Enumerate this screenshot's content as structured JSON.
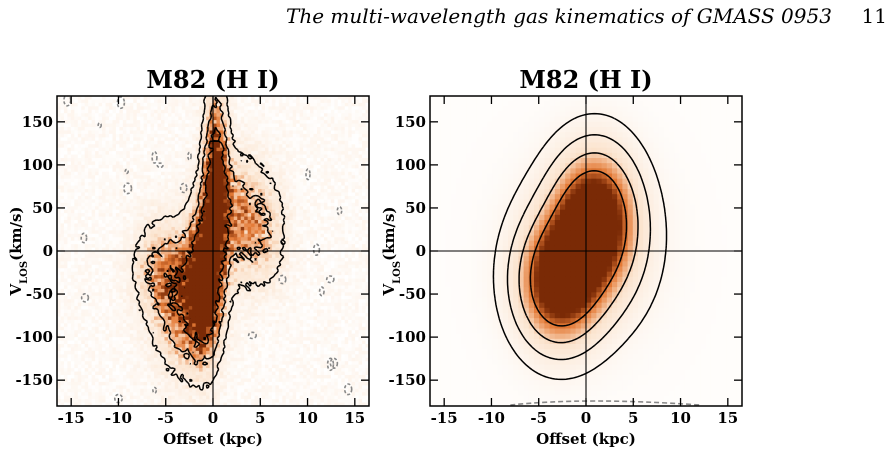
{
  "header": {
    "running_title": "The multi-wavelength gas kinematics of GMASS 0953",
    "page_number": "11"
  },
  "colors": {
    "light": "#fbe3cd",
    "mid": "#e47a36",
    "dark": "#7a2a06",
    "contour": "#000000",
    "negative_contour": "#888888"
  },
  "chart_data": [
    {
      "type": "heatmap",
      "title": "M82 (H I)",
      "xlabel": "Offset (kpc)",
      "ylabel": "V",
      "ylabel_sub": "LOS",
      "ylabel_unit": "(km/s)",
      "xlim": [
        -16.5,
        16.5
      ],
      "ylim": [
        -180,
        180
      ],
      "xticks": [
        -15,
        -10,
        -5,
        0,
        5,
        10,
        15
      ],
      "yticks": [
        -150,
        -100,
        -50,
        0,
        50,
        100,
        150
      ],
      "reference_lines": {
        "x": 0,
        "y": 0
      },
      "style": "data",
      "emission": [
        {
          "x": 0.3,
          "y": 90,
          "sx": 0.9,
          "sy": 70,
          "amp": 1.0
        },
        {
          "x": -0.8,
          "y": -35,
          "sx": 1.2,
          "sy": 60,
          "amp": 1.0
        },
        {
          "x": -3,
          "y": -60,
          "sx": 2.2,
          "sy": 55,
          "amp": 0.75
        },
        {
          "x": 2.5,
          "y": 40,
          "sx": 2.2,
          "sy": 50,
          "amp": 0.55
        },
        {
          "x": -6,
          "y": -20,
          "sx": 2.0,
          "sy": 40,
          "amp": 0.4
        },
        {
          "x": 5.5,
          "y": 20,
          "sx": 1.8,
          "sy": 45,
          "amp": 0.35
        }
      ]
    },
    {
      "type": "heatmap",
      "title": "M82 (H I)",
      "xlabel": "Offset (kpc)",
      "ylabel": "V",
      "ylabel_sub": "LOS",
      "ylabel_unit": "(km/s)",
      "xlim": [
        -16.5,
        16.5
      ],
      "ylim": [
        -180,
        180
      ],
      "xticks": [
        -15,
        -10,
        -5,
        0,
        5,
        10,
        15
      ],
      "yticks": [
        -150,
        -100,
        -50,
        0,
        50,
        100,
        150
      ],
      "reference_lines": {
        "x": 0,
        "y": 0
      },
      "style": "model",
      "emission": [
        {
          "x": 1.0,
          "y": 40,
          "sx": 3.0,
          "sy": 55,
          "amp": 1.0
        },
        {
          "x": -3.0,
          "y": -40,
          "sx": 3.0,
          "sy": 50,
          "amp": 0.95
        },
        {
          "x": 0.0,
          "y": 0,
          "sx": 5.0,
          "sy": 70,
          "amp": 0.35
        }
      ]
    }
  ]
}
